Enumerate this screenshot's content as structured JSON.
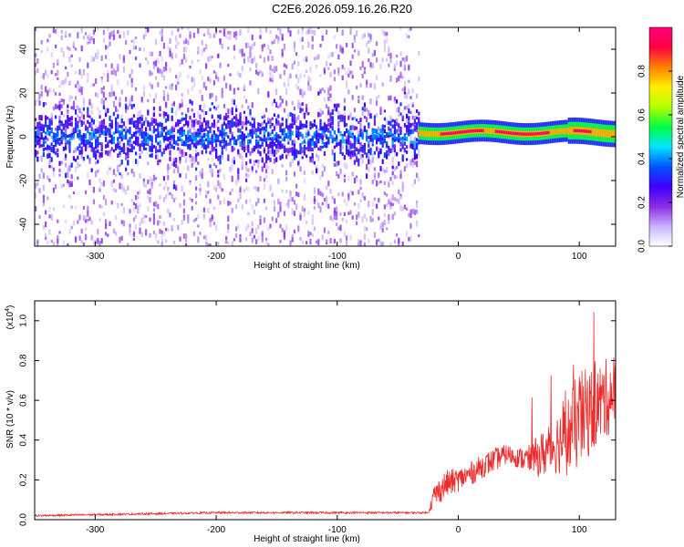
{
  "page_title": "C2E6.2026.059.16.26.R20",
  "chart_data": [
    {
      "type": "heatmap",
      "title": "C2E6.2026.059.16.26.R20",
      "xlabel": "Height of straight line (km)",
      "ylabel": "Frequency (Hz)",
      "xlim": [
        -350,
        130
      ],
      "ylim": [
        -50,
        50
      ],
      "x_ticks": [
        -300,
        -200,
        -100,
        0,
        100
      ],
      "y_ticks": [
        -40,
        -20,
        0,
        20,
        40
      ],
      "colorbar": {
        "label": "Normalized spectral amplitude",
        "range": [
          0.0,
          1.0
        ],
        "ticks": [
          "0.0",
          "0.2",
          "0.4",
          "0.6",
          "0.8"
        ],
        "colors": [
          "#ffffff",
          "#c9b3ff",
          "#8a2be2",
          "#3f00ff",
          "#0055ff",
          "#00e5ff",
          "#00ff40",
          "#b4ff00",
          "#ffee00",
          "#ff8000",
          "#ff0040",
          "#ff0080"
        ]
      },
      "regions": [
        {
          "x_range": [
            -350,
            -33
          ],
          "description_value": 0.35,
          "band_center_hz": 0,
          "band_halfwidth_hz": 6,
          "noise_extent_hz": 50
        },
        {
          "x_range": [
            -33,
            130
          ],
          "description_value": 0.95,
          "band_center_hz": 2,
          "band_halfwidth_hz": 3
        }
      ],
      "grid": false
    },
    {
      "type": "line",
      "xlabel": "Height of straight line (km)",
      "ylabel": "SNR (10 * v/v)",
      "y_multiplier": "(x10",
      "y_multiplier_exp": "4",
      "xlim": [
        -350,
        130
      ],
      "ylim": [
        0,
        1.1
      ],
      "x_ticks": [
        -300,
        -200,
        -100,
        0,
        100
      ],
      "y_ticks": [
        "0.0",
        "0.2",
        "0.4",
        "0.6",
        "0.8",
        "1.0"
      ],
      "series_color": "#ee2a2a",
      "series": [
        {
          "x": [
            -350,
            -300,
            -250,
            -200,
            -150,
            -100,
            -50,
            -25,
            -20,
            -10,
            0,
            10,
            20,
            30,
            40,
            50,
            60,
            70,
            80,
            90,
            100,
            110,
            120,
            130
          ],
          "values": [
            0.02,
            0.025,
            0.03,
            0.035,
            0.035,
            0.035,
            0.035,
            0.035,
            0.12,
            0.18,
            0.2,
            0.23,
            0.27,
            0.3,
            0.33,
            0.31,
            0.3,
            0.33,
            0.38,
            0.42,
            0.5,
            0.55,
            0.6,
            0.65
          ],
          "noise_amplitude": [
            0.005,
            0.005,
            0.005,
            0.005,
            0.005,
            0.005,
            0.005,
            0.005,
            0.06,
            0.07,
            0.06,
            0.06,
            0.06,
            0.06,
            0.05,
            0.05,
            0.08,
            0.12,
            0.15,
            0.2,
            0.25,
            0.22,
            0.2,
            0.2
          ]
        }
      ],
      "grid": false
    }
  ]
}
